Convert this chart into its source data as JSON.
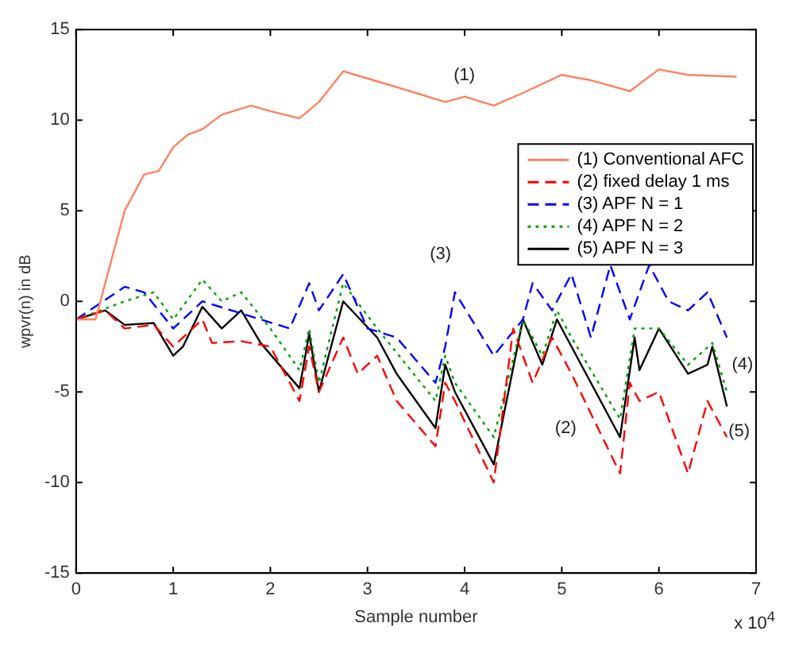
{
  "chart_data": {
    "type": "line",
    "xlabel": "Sample number",
    "ylabel": "wpvr(n) in dB",
    "xlim": [
      0,
      7
    ],
    "ylim": [
      -15,
      15
    ],
    "xticks": [
      0,
      1,
      2,
      3,
      4,
      5,
      6,
      7
    ],
    "yticks": [
      -15,
      -10,
      -5,
      0,
      5,
      10,
      15
    ],
    "grid": false,
    "legend": "top right",
    "marker": "none",
    "series": [
      {
        "name": "(1) Conventional AFC",
        "color": "#ff8060",
        "line_style": "solid",
        "x": [
          0,
          0.2,
          0.25,
          0.35,
          0.5,
          0.7,
          0.85,
          1,
          1.15,
          1.3,
          1.5,
          1.8,
          2,
          2.3,
          2.5,
          2.75,
          3,
          3.5,
          3.8,
          4,
          4.3,
          4.6,
          5,
          5.3,
          5.7,
          6,
          6.3,
          6.8
        ],
        "values": [
          -1,
          -1,
          0,
          2,
          5,
          7,
          7.2,
          8.5,
          9.2,
          9.5,
          10.3,
          10.8,
          10.5,
          10.1,
          11,
          12.7,
          12.3,
          11.5,
          11,
          11.3,
          10.8,
          11.5,
          12.5,
          12.2,
          11.6,
          12.8,
          12.5,
          12.4
        ]
      },
      {
        "name": "(2) fixed delay 1 ms",
        "color": "#ff0000",
        "line_style": "dashed",
        "x": [
          0,
          0.3,
          0.5,
          0.8,
          1,
          1.3,
          1.4,
          1.7,
          2,
          2.3,
          2.4,
          2.5,
          2.75,
          2.9,
          3.1,
          3.3,
          3.7,
          3.8,
          3.9,
          4.3,
          4.5,
          4.7,
          4.9,
          5.1,
          5.6,
          5.7,
          5.8,
          6,
          6.3,
          6.5,
          6.7
        ],
        "values": [
          -1,
          -0.5,
          -1.5,
          -1.3,
          -2.5,
          -1,
          -2.3,
          -2.2,
          -2.5,
          -5.5,
          -2.5,
          -5,
          -2,
          -4,
          -3,
          -5.5,
          -8,
          -4.5,
          -5.5,
          -10,
          -1.5,
          -4.5,
          -2,
          -4,
          -9.5,
          -4.5,
          -5.5,
          -5,
          -9.5,
          -5.5,
          -7.5
        ]
      },
      {
        "name": "(3) APF N = 1",
        "color": "#0000ff",
        "line_style": "dashed",
        "x": [
          0,
          0.5,
          0.7,
          1,
          1.3,
          1.6,
          1.9,
          2.2,
          2.4,
          2.5,
          2.75,
          3,
          3.3,
          3.7,
          3.8,
          3.9,
          4.3,
          4.6,
          4.7,
          4.9,
          5.1,
          5.3,
          5.5,
          5.7,
          5.9,
          6.1,
          6.3,
          6.5,
          6.7
        ],
        "values": [
          -1,
          0.8,
          0.5,
          -1.5,
          0,
          -0.5,
          -1,
          -1.5,
          1,
          -0.5,
          1.5,
          -1.5,
          -2,
          -4.5,
          -2.5,
          0.5,
          -3,
          -1,
          1,
          -0.5,
          1.5,
          -2,
          2,
          -1,
          2,
          0,
          -0.5,
          0.5,
          -2
        ]
      },
      {
        "name": "(4) APF N = 2",
        "color": "#00a000",
        "line_style": "dotted",
        "x": [
          0,
          0.5,
          0.8,
          1,
          1.3,
          1.5,
          1.7,
          2,
          2.3,
          2.4,
          2.5,
          2.75,
          3.1,
          3.7,
          3.8,
          3.9,
          4.3,
          4.6,
          4.8,
          4.95,
          5.1,
          5.6,
          5.75,
          6,
          6.3,
          6.55,
          6.7
        ],
        "values": [
          -1,
          0,
          0.5,
          -1,
          1.2,
          0,
          0.5,
          -1.5,
          -3.8,
          -1.5,
          -4.5,
          1,
          -1.5,
          -5.5,
          -3,
          -4.5,
          -7.5,
          -1,
          -3,
          -0.5,
          -2,
          -6.5,
          -1.5,
          -1.5,
          -3.5,
          -2.3,
          -5
        ]
      },
      {
        "name": "(5) APF N = 3",
        "color": "#000000",
        "line_style": "solid",
        "x": [
          0,
          0.3,
          0.5,
          0.8,
          1,
          1.1,
          1.3,
          1.5,
          1.7,
          1.9,
          2.3,
          2.4,
          2.5,
          2.75,
          3.1,
          3.3,
          3.7,
          3.8,
          3.9,
          4.3,
          4.6,
          4.8,
          4.95,
          5.1,
          5.6,
          5.75,
          5.8,
          6,
          6.3,
          6.5,
          6.55,
          6.7
        ],
        "values": [
          -1,
          -0.5,
          -1.3,
          -1.2,
          -3,
          -2.5,
          -0.3,
          -1.5,
          -0.5,
          -2.3,
          -4.8,
          -1.8,
          -5,
          0,
          -2,
          -4,
          -7,
          -3.5,
          -5,
          -9,
          -1,
          -3.5,
          -1,
          -2.5,
          -7.5,
          -2,
          -3.8,
          -1.5,
          -4,
          -3.5,
          -2.5,
          -5.8
        ]
      }
    ],
    "annotations": [
      "(1)",
      "(3)",
      "(2)",
      "(4)",
      "(5)",
      "x 10$^{4}$"
    ]
  }
}
